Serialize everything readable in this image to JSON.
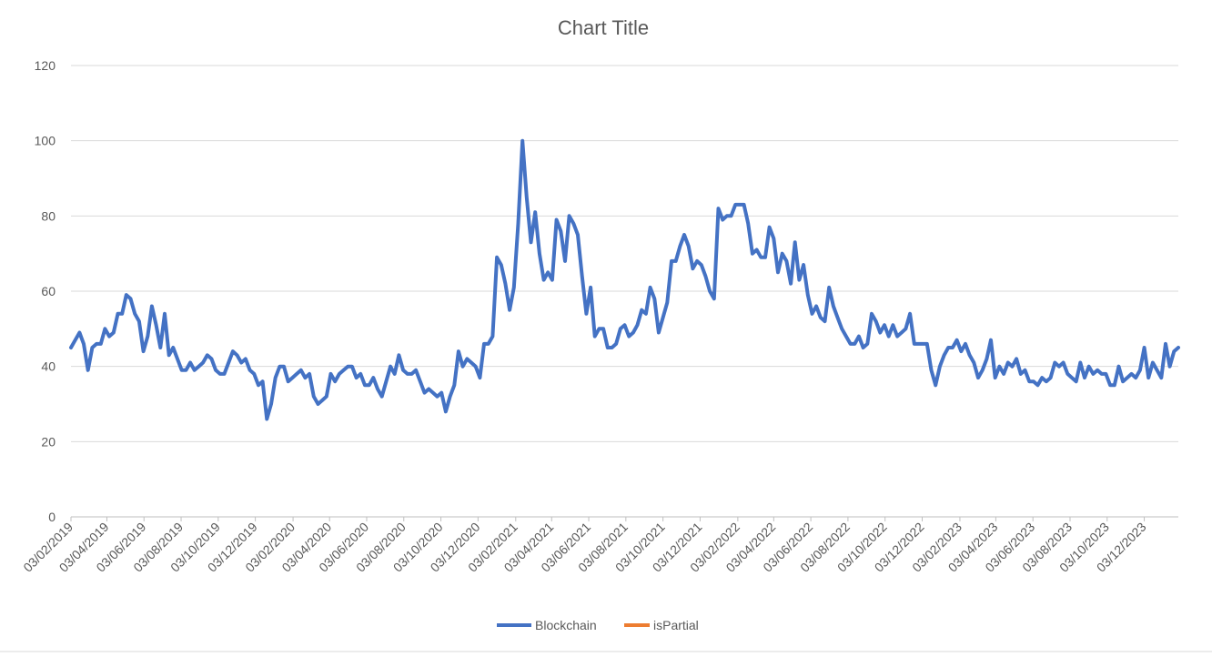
{
  "chart_data": {
    "type": "line",
    "title": "Chart Title",
    "xlabel": "",
    "ylabel": "",
    "ylim": [
      0,
      120
    ],
    "yticks": [
      0,
      20,
      40,
      60,
      80,
      100,
      120
    ],
    "grid": true,
    "legend_position": "bottom",
    "x_tick_labels": [
      "03/02/2019",
      "03/04/2019",
      "03/06/2019",
      "03/08/2019",
      "03/10/2019",
      "03/12/2019",
      "03/02/2020",
      "03/04/2020",
      "03/06/2020",
      "03/08/2020",
      "03/10/2020",
      "03/12/2020",
      "03/02/2021",
      "03/04/2021",
      "03/06/2021",
      "03/08/2021",
      "03/10/2021",
      "03/12/2021",
      "03/02/2022",
      "03/04/2022",
      "03/06/2022",
      "03/08/2022",
      "03/10/2022",
      "03/12/2022",
      "03/02/2023",
      "03/04/2023",
      "03/06/2023",
      "03/08/2023",
      "03/10/2023",
      "03/12/2023"
    ],
    "x_range": [
      "2019-02-03",
      "2024-01-28"
    ],
    "series": [
      {
        "name": "Blockchain",
        "color": "#4472C4",
        "points": [
          [
            "2019-02-03",
            45
          ],
          [
            "2019-02-10",
            47
          ],
          [
            "2019-02-17",
            49
          ],
          [
            "2019-02-24",
            46
          ],
          [
            "2019-03-03",
            39
          ],
          [
            "2019-03-10",
            45
          ],
          [
            "2019-03-17",
            46
          ],
          [
            "2019-03-24",
            46
          ],
          [
            "2019-03-31",
            50
          ],
          [
            "2019-04-07",
            48
          ],
          [
            "2019-04-14",
            49
          ],
          [
            "2019-04-21",
            54
          ],
          [
            "2019-04-28",
            54
          ],
          [
            "2019-05-05",
            59
          ],
          [
            "2019-05-12",
            58
          ],
          [
            "2019-05-19",
            54
          ],
          [
            "2019-05-26",
            52
          ],
          [
            "2019-06-02",
            44
          ],
          [
            "2019-06-09",
            48
          ],
          [
            "2019-06-16",
            56
          ],
          [
            "2019-06-23",
            51
          ],
          [
            "2019-06-30",
            45
          ],
          [
            "2019-07-07",
            54
          ],
          [
            "2019-07-14",
            43
          ],
          [
            "2019-07-21",
            45
          ],
          [
            "2019-07-28",
            42
          ],
          [
            "2019-08-04",
            39
          ],
          [
            "2019-08-11",
            39
          ],
          [
            "2019-08-18",
            41
          ],
          [
            "2019-08-25",
            39
          ],
          [
            "2019-09-01",
            40
          ],
          [
            "2019-09-08",
            41
          ],
          [
            "2019-09-15",
            43
          ],
          [
            "2019-09-22",
            42
          ],
          [
            "2019-09-29",
            39
          ],
          [
            "2019-10-06",
            38
          ],
          [
            "2019-10-13",
            38
          ],
          [
            "2019-10-20",
            41
          ],
          [
            "2019-10-27",
            44
          ],
          [
            "2019-11-03",
            43
          ],
          [
            "2019-11-10",
            41
          ],
          [
            "2019-11-17",
            42
          ],
          [
            "2019-11-24",
            39
          ],
          [
            "2019-12-01",
            38
          ],
          [
            "2019-12-08",
            35
          ],
          [
            "2019-12-15",
            36
          ],
          [
            "2019-12-22",
            26
          ],
          [
            "2019-12-29",
            30
          ],
          [
            "2020-01-05",
            37
          ],
          [
            "2020-01-12",
            40
          ],
          [
            "2020-01-19",
            40
          ],
          [
            "2020-01-26",
            36
          ],
          [
            "2020-02-02",
            37
          ],
          [
            "2020-02-09",
            38
          ],
          [
            "2020-02-16",
            39
          ],
          [
            "2020-02-23",
            37
          ],
          [
            "2020-03-01",
            38
          ],
          [
            "2020-03-08",
            32
          ],
          [
            "2020-03-15",
            30
          ],
          [
            "2020-03-22",
            31
          ],
          [
            "2020-03-29",
            32
          ],
          [
            "2020-04-05",
            38
          ],
          [
            "2020-04-12",
            36
          ],
          [
            "2020-04-19",
            38
          ],
          [
            "2020-04-26",
            39
          ],
          [
            "2020-05-03",
            40
          ],
          [
            "2020-05-10",
            40
          ],
          [
            "2020-05-17",
            37
          ],
          [
            "2020-05-24",
            38
          ],
          [
            "2020-05-31",
            35
          ],
          [
            "2020-06-07",
            35
          ],
          [
            "2020-06-14",
            37
          ],
          [
            "2020-06-21",
            34
          ],
          [
            "2020-06-28",
            32
          ],
          [
            "2020-07-05",
            36
          ],
          [
            "2020-07-12",
            40
          ],
          [
            "2020-07-19",
            38
          ],
          [
            "2020-07-26",
            43
          ],
          [
            "2020-08-02",
            39
          ],
          [
            "2020-08-09",
            38
          ],
          [
            "2020-08-16",
            38
          ],
          [
            "2020-08-23",
            39
          ],
          [
            "2020-08-30",
            36
          ],
          [
            "2020-09-06",
            33
          ],
          [
            "2020-09-13",
            34
          ],
          [
            "2020-09-20",
            33
          ],
          [
            "2020-09-27",
            32
          ],
          [
            "2020-10-04",
            33
          ],
          [
            "2020-10-11",
            28
          ],
          [
            "2020-10-18",
            32
          ],
          [
            "2020-10-25",
            35
          ],
          [
            "2020-11-01",
            44
          ],
          [
            "2020-11-08",
            40
          ],
          [
            "2020-11-15",
            42
          ],
          [
            "2020-11-22",
            41
          ],
          [
            "2020-11-29",
            40
          ],
          [
            "2020-12-06",
            37
          ],
          [
            "2020-12-13",
            46
          ],
          [
            "2020-12-20",
            46
          ],
          [
            "2020-12-27",
            48
          ],
          [
            "2021-01-03",
            69
          ],
          [
            "2021-01-10",
            67
          ],
          [
            "2021-01-17",
            62
          ],
          [
            "2021-01-24",
            55
          ],
          [
            "2021-01-31",
            61
          ],
          [
            "2021-02-07",
            78
          ],
          [
            "2021-02-14",
            100
          ],
          [
            "2021-02-21",
            85
          ],
          [
            "2021-02-28",
            73
          ],
          [
            "2021-03-07",
            81
          ],
          [
            "2021-03-14",
            70
          ],
          [
            "2021-03-21",
            63
          ],
          [
            "2021-03-28",
            65
          ],
          [
            "2021-04-04",
            63
          ],
          [
            "2021-04-11",
            79
          ],
          [
            "2021-04-18",
            76
          ],
          [
            "2021-04-25",
            68
          ],
          [
            "2021-05-02",
            80
          ],
          [
            "2021-05-09",
            78
          ],
          [
            "2021-05-16",
            75
          ],
          [
            "2021-05-23",
            64
          ],
          [
            "2021-05-30",
            54
          ],
          [
            "2021-06-06",
            61
          ],
          [
            "2021-06-13",
            48
          ],
          [
            "2021-06-20",
            50
          ],
          [
            "2021-06-27",
            50
          ],
          [
            "2021-07-04",
            45
          ],
          [
            "2021-07-11",
            45
          ],
          [
            "2021-07-18",
            46
          ],
          [
            "2021-07-25",
            50
          ],
          [
            "2021-08-01",
            51
          ],
          [
            "2021-08-08",
            48
          ],
          [
            "2021-08-15",
            49
          ],
          [
            "2021-08-22",
            51
          ],
          [
            "2021-08-29",
            55
          ],
          [
            "2021-09-05",
            54
          ],
          [
            "2021-09-12",
            61
          ],
          [
            "2021-09-19",
            58
          ],
          [
            "2021-09-26",
            49
          ],
          [
            "2021-10-03",
            53
          ],
          [
            "2021-10-10",
            57
          ],
          [
            "2021-10-17",
            68
          ],
          [
            "2021-10-24",
            68
          ],
          [
            "2021-10-31",
            72
          ],
          [
            "2021-11-07",
            75
          ],
          [
            "2021-11-14",
            72
          ],
          [
            "2021-11-21",
            66
          ],
          [
            "2021-11-28",
            68
          ],
          [
            "2021-12-05",
            67
          ],
          [
            "2021-12-12",
            64
          ],
          [
            "2021-12-19",
            60
          ],
          [
            "2021-12-26",
            58
          ],
          [
            "2022-01-02",
            82
          ],
          [
            "2022-01-09",
            79
          ],
          [
            "2022-01-16",
            80
          ],
          [
            "2022-01-23",
            80
          ],
          [
            "2022-01-30",
            83
          ],
          [
            "2022-02-06",
            83
          ],
          [
            "2022-02-13",
            83
          ],
          [
            "2022-02-20",
            78
          ],
          [
            "2022-02-27",
            70
          ],
          [
            "2022-03-06",
            71
          ],
          [
            "2022-03-13",
            69
          ],
          [
            "2022-03-20",
            69
          ],
          [
            "2022-03-27",
            77
          ],
          [
            "2022-04-03",
            74
          ],
          [
            "2022-04-10",
            65
          ],
          [
            "2022-04-17",
            70
          ],
          [
            "2022-04-24",
            68
          ],
          [
            "2022-05-01",
            62
          ],
          [
            "2022-05-08",
            73
          ],
          [
            "2022-05-15",
            63
          ],
          [
            "2022-05-22",
            67
          ],
          [
            "2022-05-29",
            59
          ],
          [
            "2022-06-05",
            54
          ],
          [
            "2022-06-12",
            56
          ],
          [
            "2022-06-19",
            53
          ],
          [
            "2022-06-26",
            52
          ],
          [
            "2022-07-03",
            61
          ],
          [
            "2022-07-10",
            56
          ],
          [
            "2022-07-17",
            53
          ],
          [
            "2022-07-24",
            50
          ],
          [
            "2022-07-31",
            48
          ],
          [
            "2022-08-07",
            46
          ],
          [
            "2022-08-14",
            46
          ],
          [
            "2022-08-21",
            48
          ],
          [
            "2022-08-28",
            45
          ],
          [
            "2022-09-04",
            46
          ],
          [
            "2022-09-11",
            54
          ],
          [
            "2022-09-18",
            52
          ],
          [
            "2022-09-25",
            49
          ],
          [
            "2022-10-02",
            51
          ],
          [
            "2022-10-09",
            48
          ],
          [
            "2022-10-16",
            51
          ],
          [
            "2022-10-23",
            48
          ],
          [
            "2022-10-30",
            49
          ],
          [
            "2022-11-06",
            50
          ],
          [
            "2022-11-13",
            54
          ],
          [
            "2022-11-20",
            46
          ],
          [
            "2022-11-27",
            46
          ],
          [
            "2022-12-04",
            46
          ],
          [
            "2022-12-11",
            46
          ],
          [
            "2022-12-18",
            39
          ],
          [
            "2022-12-25",
            35
          ],
          [
            "2023-01-01",
            40
          ],
          [
            "2023-01-08",
            43
          ],
          [
            "2023-01-15",
            45
          ],
          [
            "2023-01-22",
            45
          ],
          [
            "2023-01-29",
            47
          ],
          [
            "2023-02-05",
            44
          ],
          [
            "2023-02-12",
            46
          ],
          [
            "2023-02-19",
            43
          ],
          [
            "2023-02-26",
            41
          ],
          [
            "2023-03-05",
            37
          ],
          [
            "2023-03-12",
            39
          ],
          [
            "2023-03-19",
            42
          ],
          [
            "2023-03-26",
            47
          ],
          [
            "2023-04-02",
            37
          ],
          [
            "2023-04-09",
            40
          ],
          [
            "2023-04-16",
            38
          ],
          [
            "2023-04-23",
            41
          ],
          [
            "2023-04-30",
            40
          ],
          [
            "2023-05-07",
            42
          ],
          [
            "2023-05-14",
            38
          ],
          [
            "2023-05-21",
            39
          ],
          [
            "2023-05-28",
            36
          ],
          [
            "2023-06-04",
            36
          ],
          [
            "2023-06-11",
            35
          ],
          [
            "2023-06-18",
            37
          ],
          [
            "2023-06-25",
            36
          ],
          [
            "2023-07-02",
            37
          ],
          [
            "2023-07-09",
            41
          ],
          [
            "2023-07-16",
            40
          ],
          [
            "2023-07-23",
            41
          ],
          [
            "2023-07-30",
            38
          ],
          [
            "2023-08-06",
            37
          ],
          [
            "2023-08-13",
            36
          ],
          [
            "2023-08-20",
            41
          ],
          [
            "2023-08-27",
            37
          ],
          [
            "2023-09-03",
            40
          ],
          [
            "2023-09-10",
            38
          ],
          [
            "2023-09-17",
            39
          ],
          [
            "2023-09-24",
            38
          ],
          [
            "2023-10-01",
            38
          ],
          [
            "2023-10-08",
            35
          ],
          [
            "2023-10-15",
            35
          ],
          [
            "2023-10-22",
            40
          ],
          [
            "2023-10-29",
            36
          ],
          [
            "2023-11-05",
            37
          ],
          [
            "2023-11-12",
            38
          ],
          [
            "2023-11-19",
            37
          ],
          [
            "2023-11-26",
            39
          ],
          [
            "2023-12-03",
            45
          ],
          [
            "2023-12-10",
            37
          ],
          [
            "2023-12-17",
            41
          ],
          [
            "2023-12-24",
            39
          ],
          [
            "2023-12-31",
            37
          ],
          [
            "2024-01-07",
            46
          ],
          [
            "2024-01-14",
            40
          ],
          [
            "2024-01-21",
            44
          ],
          [
            "2024-01-28",
            45
          ]
        ]
      },
      {
        "name": "isPartial",
        "color": "#ED7D31",
        "points": []
      }
    ]
  }
}
